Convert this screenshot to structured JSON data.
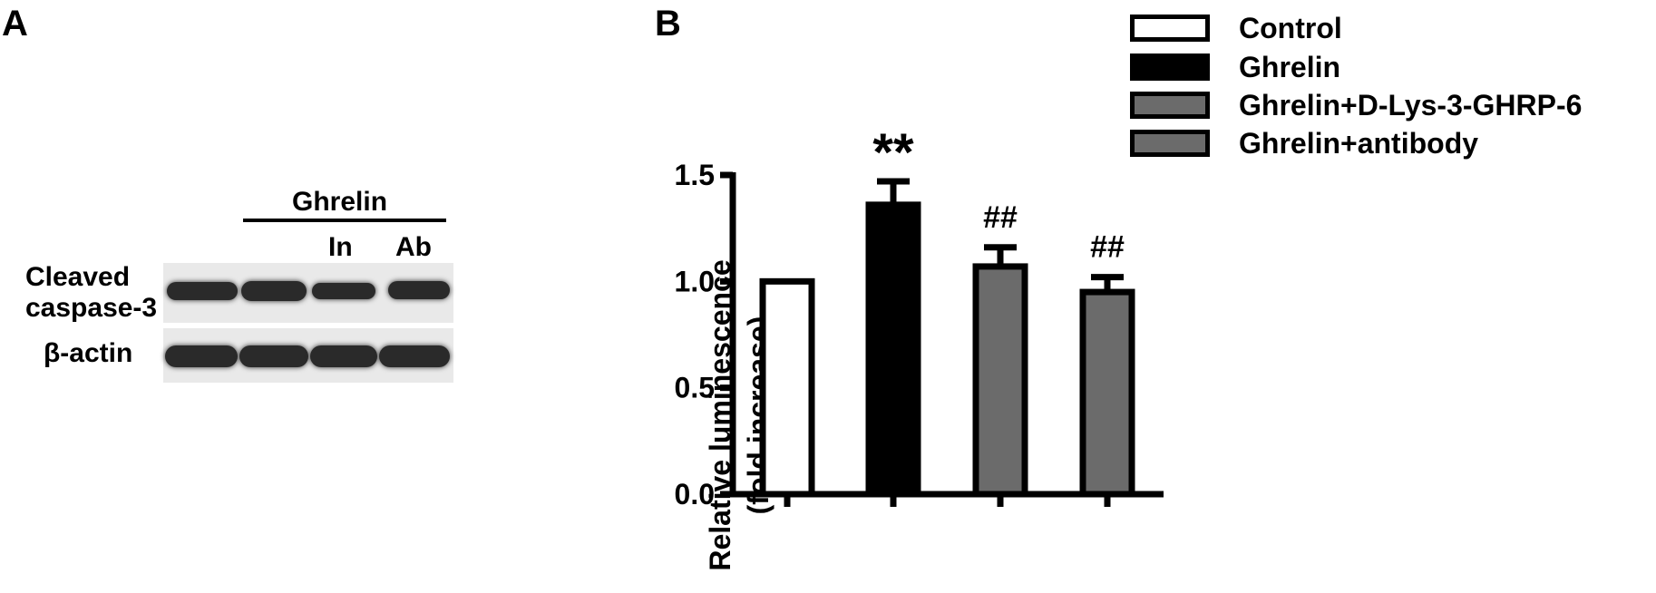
{
  "panels": {
    "a_label": "A",
    "b_label": "B"
  },
  "blot": {
    "group_label": "Ghrelin",
    "lane_labels": [
      "In",
      "Ab"
    ],
    "rows": [
      {
        "label_lines": [
          "Cleaved",
          "caspase-3"
        ]
      },
      {
        "label_lines": [
          "β-actin"
        ]
      }
    ],
    "band_color": "#2a2a2a",
    "membrane_color": "#e9e9e9"
  },
  "chart_data": {
    "type": "bar",
    "categories": [
      "Control",
      "Ghrelin",
      "Ghrelin+D-Lys-3-GHRP-6",
      "Ghrelin+antibody"
    ],
    "values": [
      1.0,
      1.36,
      1.07,
      0.95
    ],
    "errors": [
      0.0,
      0.11,
      0.09,
      0.07
    ],
    "annotations": [
      "",
      "**",
      "##",
      "##"
    ],
    "colors": [
      "#ffffff",
      "#000000",
      "#6b6b6b",
      "#6b6b6b"
    ],
    "ylabel_lines": [
      "Relative luminescence",
      "(fold increase)"
    ],
    "yticks": [
      "0.0",
      "0.5",
      "1.0",
      "1.5"
    ],
    "ylim": [
      0,
      1.5
    ],
    "grid": false,
    "legend_position": "top-right",
    "legend": [
      "Control",
      "Ghrelin",
      "Ghrelin+D-Lys-3-GHRP-6",
      "Ghrelin+antibody"
    ]
  }
}
